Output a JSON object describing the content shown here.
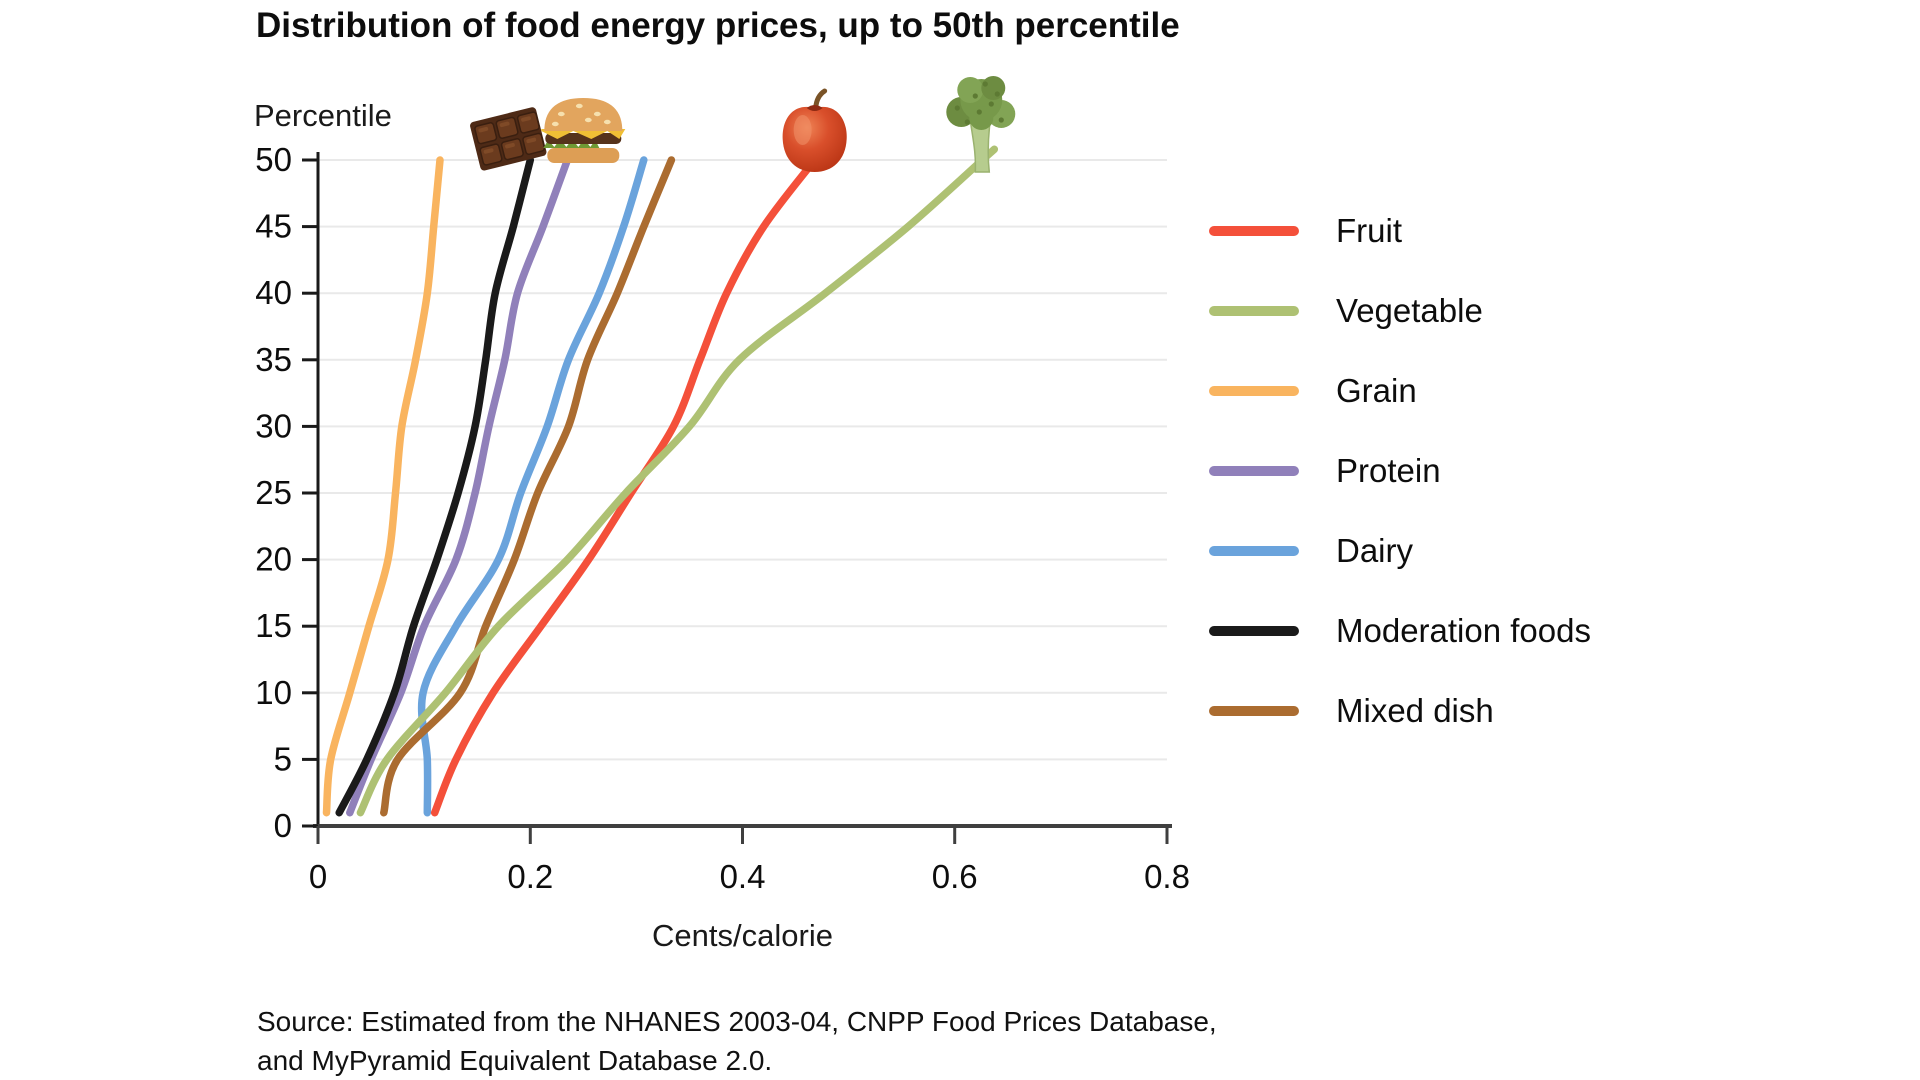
{
  "title": "Distribution of food energy prices, up to 50th percentile",
  "y_axis_title": "Percentile",
  "x_axis_title": "Cents/calorie",
  "source_note": {
    "line1": "Source: Estimated from the NHANES 2003-04, CNPP Food Prices Database,",
    "line2": "and MyPyramid Equivalent Database 2.0."
  },
  "chart_data": {
    "type": "line",
    "title": "Distribution of food energy prices, up to 50th percentile",
    "xlabel": "Cents/calorie",
    "ylabel": "Percentile",
    "xlim": [
      0,
      0.8
    ],
    "ylim": [
      0,
      50
    ],
    "x_ticks": [
      0,
      0.2,
      0.4,
      0.6,
      0.8
    ],
    "y_ticks": [
      0,
      5,
      10,
      15,
      20,
      25,
      30,
      35,
      40,
      45,
      50
    ],
    "grid": "horizontal-light",
    "legend_position": "right-of-plot",
    "orientation": "percentile-on-y-axis, price-on-x-axis",
    "percentiles": [
      1,
      5,
      10,
      15,
      20,
      25,
      30,
      35,
      40,
      45,
      50
    ],
    "series": [
      {
        "name": "Fruit",
        "color": "#f4503a",
        "values": [
          0.11,
          0.13,
          0.165,
          0.21,
          0.255,
          0.295,
          0.335,
          0.36,
          0.385,
          0.42,
          0.468
        ]
      },
      {
        "name": "Vegetable",
        "color": "#aec173",
        "values": [
          0.04,
          0.065,
          0.12,
          0.17,
          0.235,
          0.29,
          0.35,
          0.397,
          0.478,
          0.556,
          0.626
        ]
      },
      {
        "name": "Grain",
        "color": "#f9b45f",
        "values": [
          0.008,
          0.012,
          0.03,
          0.048,
          0.066,
          0.073,
          0.079,
          0.092,
          0.103,
          0.109,
          0.115
        ]
      },
      {
        "name": "Protein",
        "color": "#9080ba",
        "values": [
          0.03,
          0.05,
          0.078,
          0.1,
          0.13,
          0.148,
          0.161,
          0.176,
          0.188,
          0.212,
          0.235
        ]
      },
      {
        "name": "Dairy",
        "color": "#6aa3dc",
        "values": [
          0.103,
          0.103,
          0.099,
          0.13,
          0.17,
          0.191,
          0.216,
          0.236,
          0.265,
          0.288,
          0.307
        ]
      },
      {
        "name": "Moderation foods",
        "color": "#1a1a1a",
        "values": [
          0.02,
          0.046,
          0.072,
          0.09,
          0.112,
          0.132,
          0.148,
          0.158,
          0.167,
          0.184,
          0.2
        ]
      },
      {
        "name": "Mixed dish",
        "color": "#ab6c30",
        "values": [
          0.062,
          0.075,
          0.134,
          0.158,
          0.185,
          0.207,
          0.236,
          0.254,
          0.282,
          0.307,
          0.333
        ]
      }
    ],
    "draw_order": [
      "Grain",
      "Protein",
      "Moderation foods",
      "Dairy",
      "Mixed dish",
      "Fruit",
      "Vegetable"
    ],
    "extend_above_top": [
      "Fruit",
      "Vegetable"
    ],
    "icons": [
      {
        "name": "chocolate-icon",
        "x": 0.19
      },
      {
        "name": "burger-icon",
        "x": 0.25
      },
      {
        "name": "apple-icon",
        "x": 0.468
      },
      {
        "name": "broccoli-icon",
        "x": 0.625
      }
    ],
    "axis_colors": {
      "axis": "#3f3f3f",
      "gridline": "#e9e9e9",
      "tick_label": "#0d0d0d"
    }
  }
}
